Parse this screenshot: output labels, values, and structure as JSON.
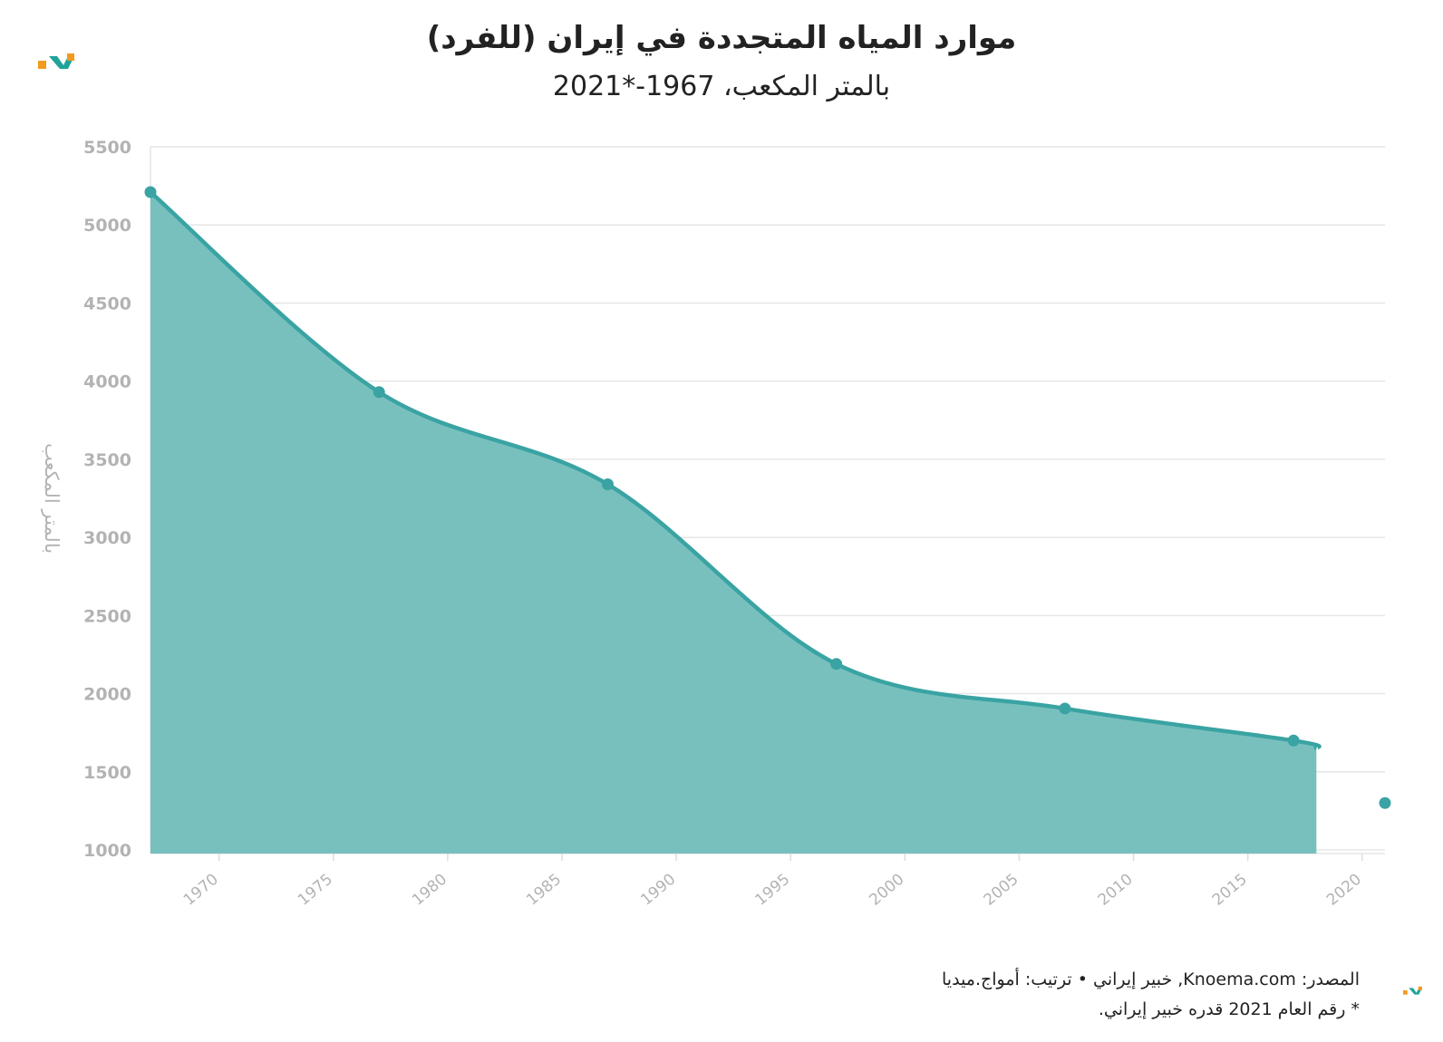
{
  "chart_data": {
    "type": "area",
    "title": "موارد المياه المتجددة في إيران (للفرد)",
    "subtitle": "بالمتر المكعب، 1967-*2021",
    "ylabel": "بالمتر المكعب",
    "xlabel": "",
    "ylim": [
      1000,
      5500
    ],
    "xlim": [
      1967,
      2021
    ],
    "yticks": [
      1000,
      1500,
      2000,
      2500,
      3000,
      3500,
      4000,
      4500,
      5000,
      5500
    ],
    "xticks": [
      1970,
      1975,
      1980,
      1985,
      1990,
      1995,
      2000,
      2005,
      2010,
      2015,
      2020
    ],
    "grid": true,
    "color": "#3aa3a3",
    "fill_color": "#78c0be",
    "area_end_x": 2018,
    "area_end_y": 1650,
    "series": [
      {
        "x": [
          1967,
          1977,
          1987,
          1997,
          2007,
          2017
        ],
        "values": [
          5210,
          3930,
          3340,
          2190,
          1905,
          1700
        ]
      }
    ],
    "highlight_point": {
      "x": 2021,
      "y": 1300
    }
  },
  "footer": {
    "source": "خبير إيراني • ترتيب: أمواج.ميديا ,Knoema.com :المصدر",
    "note": ".رقم العام 2021 قدره خبير إيراني *"
  }
}
